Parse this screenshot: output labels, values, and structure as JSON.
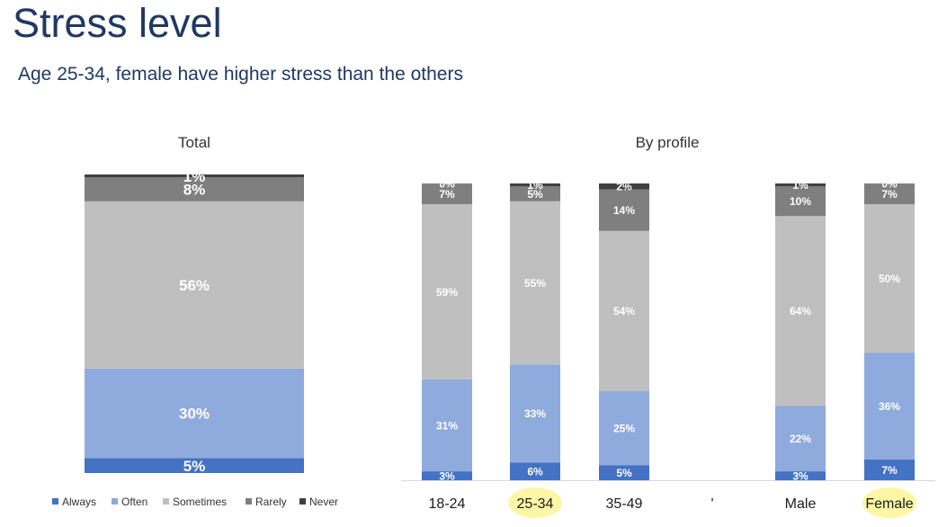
{
  "header": {
    "title": "Stress level",
    "subtitle": "Age 25-34, female have higher stress than the others"
  },
  "colors": {
    "Always": "#4472c4",
    "Often": "#8faadc",
    "Sometimes": "#bfbfbf",
    "Rarely": "#7f7f7f",
    "Never": "#404040",
    "highlight": "#fbf7a4"
  },
  "chart_data": [
    {
      "type": "bar",
      "stacked": true,
      "title": "Total",
      "categories": [
        ""
      ],
      "series": [
        {
          "name": "Always",
          "values": [
            5
          ],
          "labels": [
            "5%"
          ]
        },
        {
          "name": "Often",
          "values": [
            30
          ],
          "labels": [
            "30%"
          ]
        },
        {
          "name": "Sometimes",
          "values": [
            56
          ],
          "labels": [
            "56%"
          ]
        },
        {
          "name": "Rarely",
          "values": [
            8
          ],
          "labels": [
            "8%"
          ]
        },
        {
          "name": "Never",
          "values": [
            1
          ],
          "labels": [
            "1%"
          ]
        }
      ],
      "ylim": [
        0,
        100
      ],
      "legend": "bottom"
    },
    {
      "type": "bar",
      "stacked": true,
      "title": "By profile",
      "categories": [
        "18-24",
        "25-34",
        "35-49",
        "'",
        "Male",
        "Female"
      ],
      "highlighted_categories": [
        "25-34",
        "Female"
      ],
      "series": [
        {
          "name": "Always",
          "values": [
            3,
            6,
            5,
            null,
            3,
            7
          ],
          "labels": [
            "3%",
            "6%",
            "5%",
            "",
            "3%",
            "7%"
          ]
        },
        {
          "name": "Often",
          "values": [
            31,
            33,
            25,
            null,
            22,
            36
          ],
          "labels": [
            "31%",
            "33%",
            "25%",
            "",
            "22%",
            "36%"
          ]
        },
        {
          "name": "Sometimes",
          "values": [
            59,
            55,
            54,
            null,
            64,
            50
          ],
          "labels": [
            "59%",
            "55%",
            "54%",
            "",
            "64%",
            "50%"
          ]
        },
        {
          "name": "Rarely",
          "values": [
            7,
            5,
            14,
            null,
            10,
            7
          ],
          "labels": [
            "7%",
            "5%",
            "14%",
            "",
            "10%",
            "7%"
          ]
        },
        {
          "name": "Never",
          "values": [
            0,
            1,
            2,
            null,
            1,
            0
          ],
          "labels": [
            "0%",
            "1%",
            "2%",
            "",
            "1%",
            "0%"
          ]
        }
      ],
      "ylim": [
        0,
        100
      ]
    }
  ],
  "legend": {
    "items": [
      "Always",
      "Often",
      "Sometimes",
      "Rarely",
      "Never"
    ]
  }
}
